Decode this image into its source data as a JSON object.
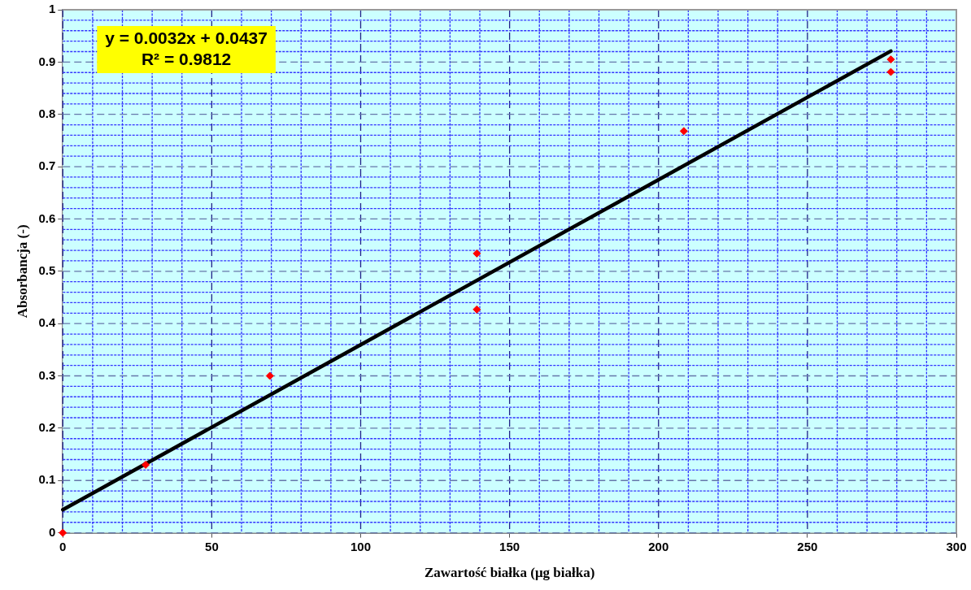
{
  "chart_data": {
    "type": "scatter",
    "xlabel": "Zawartość białka (μg białka)",
    "ylabel": "Absorbancja (-)",
    "xlim": [
      0,
      300
    ],
    "ylim": [
      0,
      1
    ],
    "xticks": [
      0,
      {
        "value": 10,
        "label": null
      },
      {
        "value": 20,
        "label": null
      },
      {
        "value": 30,
        "label": null
      },
      {
        "value": 40,
        "label": null
      },
      50,
      {
        "value": 60,
        "label": null
      },
      {
        "value": 70,
        "label": null
      },
      {
        "value": 80,
        "label": null
      },
      {
        "value": 90,
        "label": null
      },
      100,
      {
        "value": 110,
        "label": null
      },
      {
        "value": 120,
        "label": null
      },
      {
        "value": 130,
        "label": null
      },
      {
        "value": 140,
        "label": null
      },
      150,
      {
        "value": 160,
        "label": null
      },
      {
        "value": 170,
        "label": null
      },
      {
        "value": 180,
        "label": null
      },
      {
        "value": 190,
        "label": null
      },
      200,
      {
        "value": 210,
        "label": null
      },
      {
        "value": 220,
        "label": null
      },
      {
        "value": 230,
        "label": null
      },
      {
        "value": 240,
        "label": null
      },
      250,
      {
        "value": 260,
        "label": null
      },
      {
        "value": 270,
        "label": null
      },
      {
        "value": 280,
        "label": null
      },
      {
        "value": 290,
        "label": null
      },
      300
    ],
    "yticks": [
      0,
      {
        "value": 0.02,
        "label": null
      },
      {
        "value": 0.04,
        "label": null
      },
      {
        "value": 0.06,
        "label": null
      },
      {
        "value": 0.08,
        "label": null
      },
      0.1,
      {
        "value": 0.12,
        "label": null
      },
      {
        "value": 0.14,
        "label": null
      },
      {
        "value": 0.16,
        "label": null
      },
      {
        "value": 0.18,
        "label": null
      },
      0.2,
      {
        "value": 0.22,
        "label": null
      },
      {
        "value": 0.24,
        "label": null
      },
      {
        "value": 0.26,
        "label": null
      },
      {
        "value": 0.28,
        "label": null
      },
      0.3,
      {
        "value": 0.32,
        "label": null
      },
      {
        "value": 0.34,
        "label": null
      },
      {
        "value": 0.36,
        "label": null
      },
      {
        "value": 0.38,
        "label": null
      },
      0.4,
      {
        "value": 0.42,
        "label": null
      },
      {
        "value": 0.44,
        "label": null
      },
      {
        "value": 0.46,
        "label": null
      },
      {
        "value": 0.48,
        "label": null
      },
      0.5,
      {
        "value": 0.52,
        "label": null
      },
      {
        "value": 0.54,
        "label": null
      },
      {
        "value": 0.56,
        "label": null
      },
      {
        "value": 0.58,
        "label": null
      },
      0.6,
      {
        "value": 0.62,
        "label": null
      },
      {
        "value": 0.64,
        "label": null
      },
      {
        "value": 0.66,
        "label": null
      },
      {
        "value": 0.68,
        "label": null
      },
      0.7,
      {
        "value": 0.72,
        "label": null
      },
      {
        "value": 0.74,
        "label": null
      },
      {
        "value": 0.76,
        "label": null
      },
      {
        "value": 0.78,
        "label": null
      },
      0.8,
      {
        "value": 0.82,
        "label": null
      },
      {
        "value": 0.84,
        "label": null
      },
      {
        "value": 0.86,
        "label": null
      },
      {
        "value": 0.88,
        "label": null
      },
      0.9,
      {
        "value": 0.92,
        "label": null
      },
      {
        "value": 0.94,
        "label": null
      },
      {
        "value": 0.96,
        "label": null
      },
      {
        "value": 0.98,
        "label": null
      },
      1
    ],
    "grid": true,
    "marker": "diamond",
    "annotations": [
      "y = 0.0032x + 0.0437",
      "R² = 0.9812"
    ],
    "series": [
      {
        "color": "#ff0000",
        "x": [
          0,
          27.8,
          69.5,
          139,
          139,
          208.5,
          278,
          278
        ],
        "values": [
          0,
          0.13,
          0.3,
          0.534,
          0.427,
          0.768,
          0.905,
          0.881
        ]
      },
      {
        "type": "line",
        "color": "#000000",
        "marker": "none",
        "x": [
          0,
          278
        ],
        "values": [
          0.044,
          0.921
        ]
      }
    ]
  }
}
